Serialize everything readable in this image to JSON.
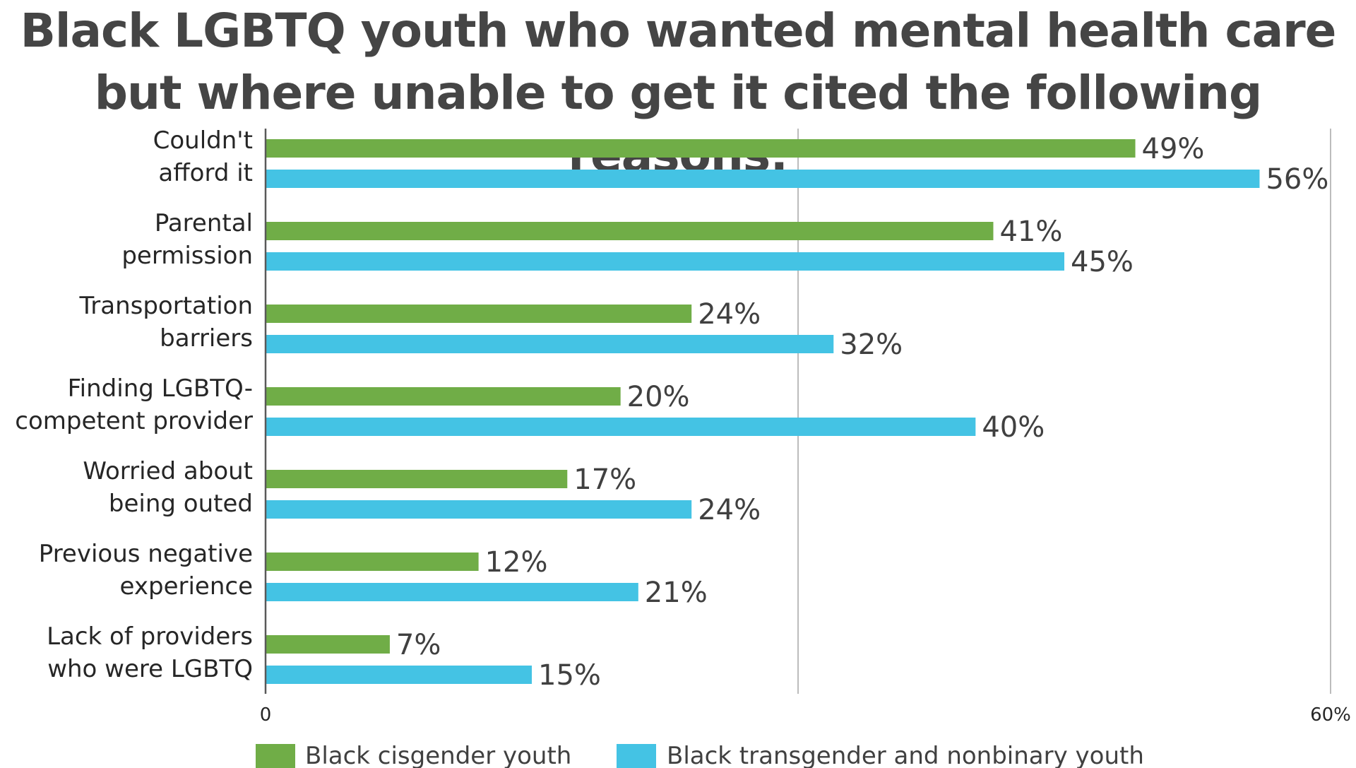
{
  "chart_data": {
    "type": "bar",
    "orientation": "horizontal",
    "title": "Black LGBTQ youth who wanted mental health care but where unable to get it cited the following reasons:",
    "categories": [
      [
        "Couldn't",
        "afford it"
      ],
      [
        "Parental",
        "permission"
      ],
      [
        "Transportation",
        "barriers"
      ],
      [
        "Finding LGBTQ-",
        "competent provider"
      ],
      [
        "Worried about",
        "being outed"
      ],
      [
        "Previous negative",
        "experience"
      ],
      [
        "Lack of providers",
        "who were LGBTQ"
      ]
    ],
    "series": [
      {
        "name": "Black cisgender youth",
        "color": "#70AD47",
        "values": [
          49,
          41,
          24,
          20,
          17,
          12,
          7
        ]
      },
      {
        "name": "Black transgender and nonbinary youth",
        "color": "#44C3E4",
        "values": [
          56,
          45,
          32,
          40,
          24,
          21,
          15
        ]
      }
    ],
    "value_suffix": "%",
    "xlim": [
      0,
      60
    ],
    "x_ticks": [
      "0",
      "60%"
    ],
    "grid": true,
    "legend": "bottom"
  }
}
